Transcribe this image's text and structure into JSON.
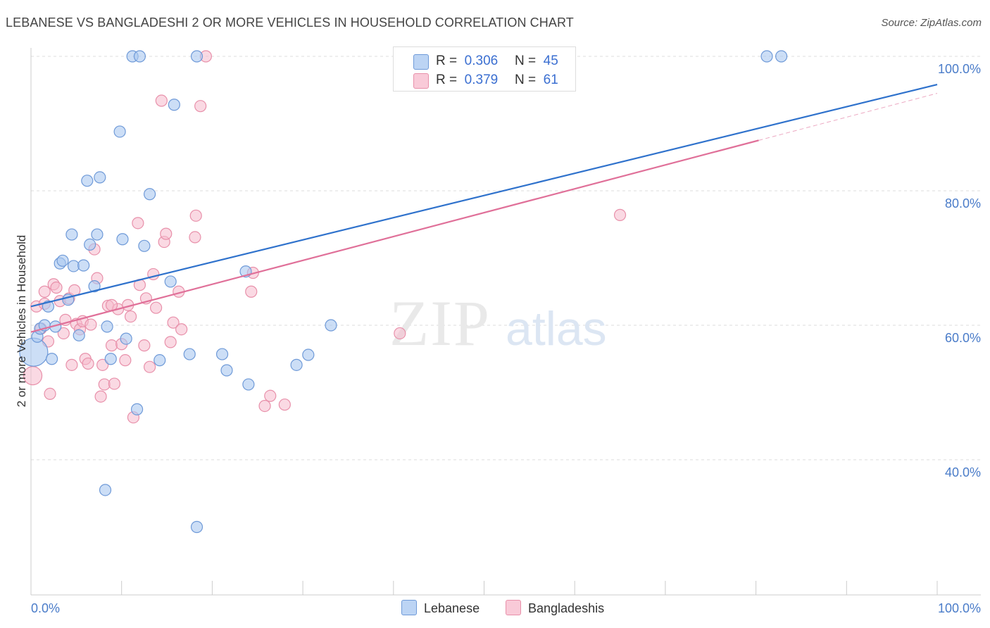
{
  "title": "LEBANESE VS BANGLADESHI 2 OR MORE VEHICLES IN HOUSEHOLD CORRELATION CHART",
  "source": "Source: ZipAtlas.com",
  "watermark": {
    "zip": "ZIP",
    "atlas": "atlas"
  },
  "colors": {
    "blue_fill": "#aac8f0",
    "blue_stroke": "#6f9ad8",
    "blue_line": "#2f72cc",
    "pink_fill": "#f6b9cc",
    "pink_stroke": "#e890aa",
    "pink_line": "#e07099",
    "tick_text": "#4a7cc9",
    "grid": "#dddddd"
  },
  "legend": {
    "rows": [
      {
        "r_label": "R =",
        "r_value": "0.306",
        "n_label": "N =",
        "n_value": "45"
      },
      {
        "r_label": "R =",
        "r_value": "0.379",
        "n_label": "N =",
        "n_value": "61"
      }
    ]
  },
  "bottom_legend": {
    "lebanese": "Lebanese",
    "bangladeshis": "Bangladeshis"
  },
  "chart_data": {
    "type": "scatter",
    "title": "LEBANESE VS BANGLADESHI 2 OR MORE VEHICLES IN HOUSEHOLD CORRELATION CHART",
    "xlabel": "",
    "ylabel": "2 or more Vehicles in Household",
    "xlim": [
      0,
      100
    ],
    "ylim": [
      20,
      101.5
    ],
    "y_ticks": [
      {
        "value": 40,
        "label": "40.0%"
      },
      {
        "value": 60,
        "label": "60.0%"
      },
      {
        "value": 80,
        "label": "80.0%"
      },
      {
        "value": 100,
        "label": "100.0%"
      }
    ],
    "x_tick_labels": {
      "left": "0.0%",
      "right": "100.0%"
    },
    "grid": true,
    "series": [
      {
        "name": "Lebanese",
        "r": 0.306,
        "n": 45,
        "trend": {
          "x": [
            0,
            100
          ],
          "y": [
            62.8,
            95.8
          ],
          "extrapolated_from": null
        },
        "points": [
          [
            0.3,
            56.0
          ],
          [
            0.7,
            58.3
          ],
          [
            1.0,
            59.5
          ],
          [
            1.5,
            60.0
          ],
          [
            1.9,
            62.8
          ],
          [
            2.3,
            55.0
          ],
          [
            2.7,
            59.8
          ],
          [
            3.2,
            69.2
          ],
          [
            3.5,
            69.6
          ],
          [
            4.1,
            63.8
          ],
          [
            4.5,
            73.5
          ],
          [
            4.7,
            68.8
          ],
          [
            5.3,
            58.5
          ],
          [
            5.8,
            68.9
          ],
          [
            6.2,
            81.5
          ],
          [
            6.5,
            72.0
          ],
          [
            7.0,
            65.8
          ],
          [
            7.3,
            73.5
          ],
          [
            7.6,
            82.0
          ],
          [
            8.2,
            35.5
          ],
          [
            8.4,
            59.8
          ],
          [
            8.8,
            55.0
          ],
          [
            9.8,
            88.8
          ],
          [
            10.1,
            72.8
          ],
          [
            10.5,
            58.0
          ],
          [
            11.2,
            100.0
          ],
          [
            11.7,
            47.5
          ],
          [
            12.0,
            100.0
          ],
          [
            12.5,
            71.8
          ],
          [
            13.1,
            79.5
          ],
          [
            14.2,
            54.8
          ],
          [
            15.4,
            66.5
          ],
          [
            15.8,
            92.8
          ],
          [
            17.5,
            55.7
          ],
          [
            18.3,
            100.0
          ],
          [
            18.3,
            30.0
          ],
          [
            21.1,
            55.7
          ],
          [
            21.6,
            53.3
          ],
          [
            23.7,
            68.0
          ],
          [
            24.0,
            51.2
          ],
          [
            29.3,
            54.1
          ],
          [
            30.6,
            55.6
          ],
          [
            33.1,
            60.0
          ],
          [
            81.2,
            100.0
          ],
          [
            82.8,
            100.0
          ]
        ]
      },
      {
        "name": "Bangladeshis",
        "r": 0.379,
        "n": 61,
        "trend": {
          "x": [
            0,
            80.3
          ],
          "y": [
            59.0,
            87.5
          ],
          "extrapolated_to": {
            "x": 100,
            "y": 94.5
          }
        },
        "points": [
          [
            0.2,
            52.5
          ],
          [
            0.6,
            62.8
          ],
          [
            1.1,
            59.5
          ],
          [
            1.5,
            63.2
          ],
          [
            1.5,
            65.0
          ],
          [
            1.9,
            57.6
          ],
          [
            2.1,
            49.8
          ],
          [
            2.5,
            66.1
          ],
          [
            2.8,
            65.6
          ],
          [
            3.2,
            63.6
          ],
          [
            3.6,
            58.8
          ],
          [
            3.8,
            60.8
          ],
          [
            4.2,
            64.0
          ],
          [
            4.5,
            54.1
          ],
          [
            4.8,
            65.2
          ],
          [
            5.0,
            60.2
          ],
          [
            5.4,
            59.4
          ],
          [
            5.7,
            60.6
          ],
          [
            6.0,
            55.0
          ],
          [
            6.3,
            54.3
          ],
          [
            6.6,
            60.1
          ],
          [
            7.0,
            71.3
          ],
          [
            7.3,
            67.0
          ],
          [
            7.7,
            49.4
          ],
          [
            7.9,
            54.1
          ],
          [
            8.1,
            51.2
          ],
          [
            8.5,
            62.9
          ],
          [
            8.9,
            57.0
          ],
          [
            9.2,
            51.3
          ],
          [
            9.6,
            62.4
          ],
          [
            10.0,
            57.2
          ],
          [
            10.4,
            54.8
          ],
          [
            10.7,
            63.0
          ],
          [
            11.0,
            61.3
          ],
          [
            11.3,
            46.3
          ],
          [
            11.8,
            75.2
          ],
          [
            12.0,
            66.0
          ],
          [
            12.5,
            57.0
          ],
          [
            12.7,
            64.0
          ],
          [
            13.1,
            53.8
          ],
          [
            13.5,
            67.6
          ],
          [
            13.8,
            62.6
          ],
          [
            14.7,
            72.4
          ],
          [
            14.9,
            73.6
          ],
          [
            15.4,
            57.5
          ],
          [
            15.7,
            60.4
          ],
          [
            16.3,
            65.0
          ],
          [
            16.6,
            59.4
          ],
          [
            18.1,
            73.1
          ],
          [
            18.2,
            76.3
          ],
          [
            18.7,
            92.6
          ],
          [
            19.3,
            100.0
          ],
          [
            24.3,
            65.0
          ],
          [
            24.5,
            67.8
          ],
          [
            25.8,
            48.0
          ],
          [
            26.4,
            49.5
          ],
          [
            28.0,
            48.2
          ],
          [
            14.4,
            93.4
          ],
          [
            40.7,
            58.8
          ],
          [
            65.0,
            76.4
          ],
          [
            8.9,
            63.0
          ]
        ]
      }
    ]
  }
}
